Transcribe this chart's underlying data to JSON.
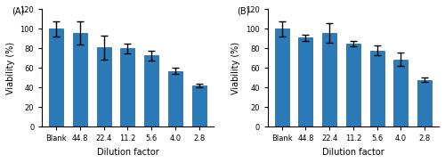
{
  "panel_A": {
    "label": "(A)",
    "categories": [
      "Blank",
      "44.8",
      "22.4",
      "11.2",
      "5.6",
      "4.0",
      "2.8"
    ],
    "values": [
      100,
      96,
      81,
      80,
      73,
      57,
      42
    ],
    "errors": [
      8,
      12,
      12,
      5,
      5,
      3,
      2
    ],
    "bar_color": "#2b7bb9",
    "xlabel": "Dilution factor",
    "ylabel": "Viability (%)",
    "ylim": [
      0,
      120
    ],
    "yticks": [
      0,
      20,
      40,
      60,
      80,
      100,
      120
    ]
  },
  "panel_B": {
    "label": "(B)",
    "categories": [
      "Blank",
      "44.8",
      "22.4",
      "11.2",
      "5.6",
      "4.0",
      "2.8"
    ],
    "values": [
      100,
      91,
      96,
      85,
      78,
      69,
      48
    ],
    "errors": [
      8,
      3,
      10,
      3,
      5,
      7,
      2
    ],
    "bar_color": "#2b7bb9",
    "xlabel": "Dilution factor",
    "ylabel": "Viability (%)",
    "ylim": [
      0,
      120
    ],
    "yticks": [
      0,
      20,
      40,
      60,
      80,
      100,
      120
    ]
  },
  "fig_width": 5.0,
  "fig_height": 1.83,
  "dpi": 100,
  "bar_width": 0.6,
  "edge_color": "#1a5a8a",
  "capsize": 3,
  "error_color": "black",
  "error_linewidth": 1.0,
  "tick_fontsize": 6,
  "label_fontsize": 7,
  "panel_label_fontsize": 7
}
